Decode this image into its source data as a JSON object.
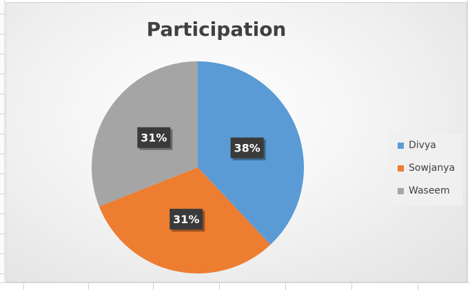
{
  "chart_data": {
    "type": "pie",
    "title": "Participation",
    "categories": [
      "Divya",
      "Sowjanya",
      "Waseem"
    ],
    "values": [
      38,
      31,
      31
    ],
    "data_labels": [
      "38%",
      "31%",
      "31%"
    ],
    "colors": [
      "#5b9bd5",
      "#ed7d31",
      "#a5a5a5"
    ],
    "legend_position": "right",
    "start_angle_deg": 0,
    "direction": "clockwise"
  }
}
